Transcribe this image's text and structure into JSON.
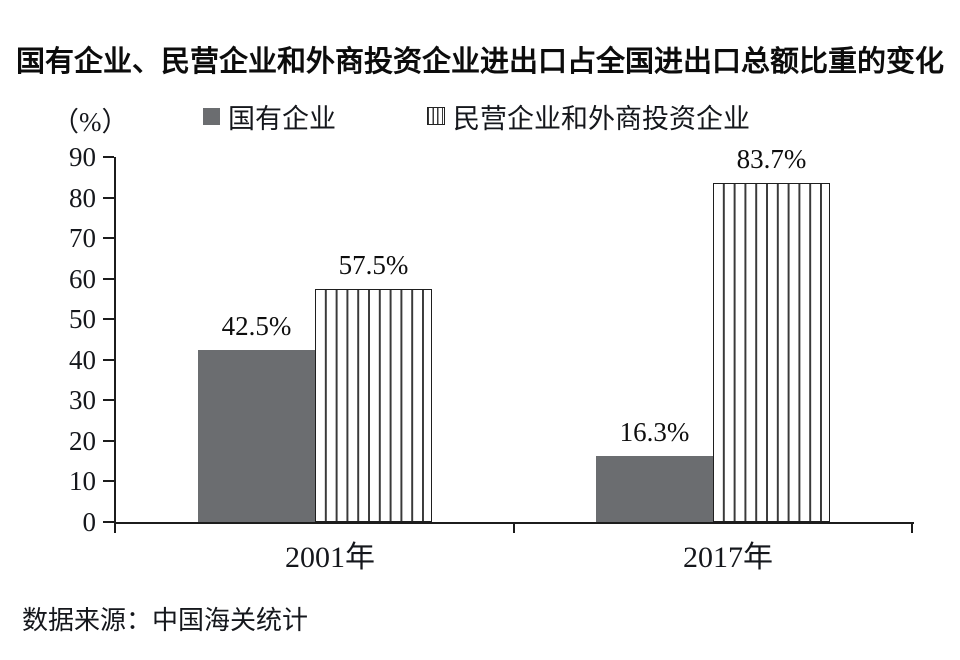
{
  "title": "国有企业、民营企业和外商投资企业进出口占全国进出口总额比重的变化",
  "unit_label": "（%）",
  "legend": {
    "items": [
      {
        "key": "state-owned",
        "label": "国有企业",
        "swatch": "solid-gray"
      },
      {
        "key": "private-foreign",
        "label": "民营企业和外商投资企业",
        "swatch": "vertical-stripes"
      }
    ]
  },
  "source_note": "数据来源：中国海关统计",
  "colors": {
    "bar_solid_gray": "#6b6d70",
    "stripe_line": "#3a3a3a",
    "axis": "#1c1c1c",
    "text": "#111111",
    "background": "#ffffff"
  },
  "chart_data": {
    "type": "bar",
    "title": "国有企业、民营企业和外商投资企业进出口占全国进出口总额比重的变化",
    "categories": [
      "2001年",
      "2017年"
    ],
    "series": [
      {
        "name": "国有企业",
        "key": "state-owned",
        "style": "solid",
        "values": [
          42.5,
          16.3
        ],
        "value_labels": [
          "42.5%",
          "16.3%"
        ]
      },
      {
        "name": "民营企业和外商投资企业",
        "key": "private-foreign",
        "style": "striped",
        "values": [
          57.5,
          83.7
        ],
        "value_labels": [
          "57.5%",
          "83.7%"
        ]
      }
    ],
    "ylabel": "（%）",
    "ylim": [
      0,
      90
    ],
    "ytick_values": [
      0,
      10,
      20,
      30,
      40,
      50,
      60,
      70,
      80,
      90
    ],
    "ytick_labels": [
      "0",
      "10",
      "20",
      "30",
      "40",
      "50",
      "60",
      "70",
      "80",
      "90"
    ],
    "grid": false,
    "legend_position": "top",
    "source": "数据来源：中国海关统计"
  }
}
